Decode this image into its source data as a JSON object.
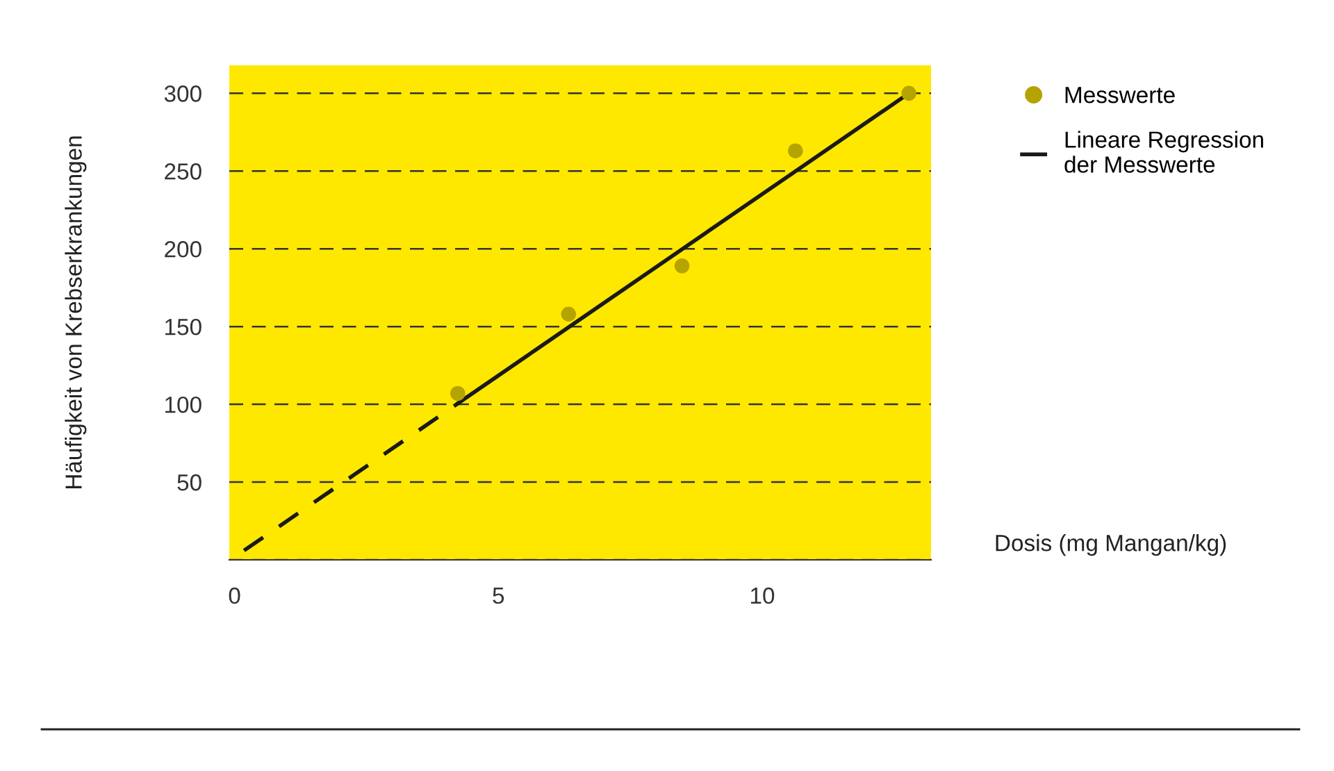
{
  "chart_data": {
    "type": "scatter",
    "xlabel": "Dosis (mg Mangan/kg)",
    "ylabel": "Häufigkeit von Krebserkrankungen",
    "xlim": [
      -0.1,
      13.2
    ],
    "ylim": [
      0,
      318
    ],
    "xticks": [
      0,
      5,
      10
    ],
    "yticks": [
      {
        "value": 0,
        "label": null
      },
      50,
      100,
      150,
      200,
      250,
      300
    ],
    "grid": "y",
    "legend": "top right",
    "marker": "circle",
    "series": [
      {
        "name": "Messwerte",
        "color": "#b5a300",
        "x": [
          4.23,
          6.33,
          8.48,
          10.63,
          12.78
        ],
        "values": [
          107,
          158,
          189,
          263,
          300
        ]
      },
      {
        "type": "line",
        "color": "#1a1a1a",
        "line_style": "dashed",
        "marker": "none",
        "x": [
          0.18,
          4.25
        ],
        "values": [
          6,
          101
        ]
      },
      {
        "name": "Lineare Regression\nder Messwerte",
        "type": "line",
        "color": "#1a1a1a",
        "line_style": "solid",
        "marker": "none",
        "x": [
          4.25,
          12.78
        ],
        "values": [
          101,
          300
        ]
      }
    ]
  }
}
